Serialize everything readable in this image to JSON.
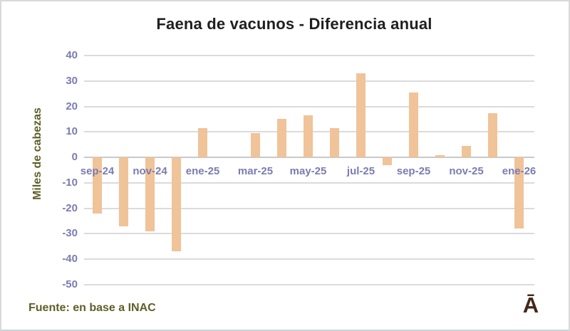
{
  "chart": {
    "title": "Faena de vacunos - Diferencia anual",
    "y_axis_title": "Miles de cabezas"
  },
  "footer": {
    "source": "Fuente: en base a INAC",
    "logo_text": "Ā"
  },
  "chart_data": {
    "type": "bar",
    "title": "Faena de vacunos - Diferencia anual",
    "xlabel": "",
    "ylabel": "Miles de cabezas",
    "categories": [
      "sep-24",
      "oct-24",
      "nov-24",
      "dic-24",
      "ene-25",
      "feb-25",
      "mar-25",
      "abr-25",
      "may-25",
      "jun-25",
      "jul-25",
      "ago-25",
      "sep-25",
      "oct-25",
      "nov-25",
      "dic-25",
      "ene-26"
    ],
    "values": [
      -22,
      -27,
      -29,
      -37,
      11.5,
      0,
      9.5,
      15,
      16.5,
      11.5,
      33,
      -3,
      25.5,
      1,
      4.5,
      17.5,
      -28
    ],
    "x_tick_labels_shown": [
      "sep-24",
      "nov-24",
      "ene-25",
      "mar-25",
      "may-25",
      "jul-25",
      "sep-25",
      "nov-25",
      "ene-26"
    ],
    "y_ticks": [
      40,
      30,
      20,
      10,
      0,
      -10,
      -20,
      -30,
      -40,
      -50
    ],
    "ylim": [
      -50,
      40
    ],
    "grid": true,
    "legend": false,
    "source_note": "Fuente: en base a INAC",
    "bar_color": "#f0c399",
    "gridline_color": "#dbdbdb",
    "zero_line_color": "#c9c9c9",
    "tick_label_color": "#7b7bb2",
    "axis_title_color": "#5f5f28",
    "source_color": "#5f5f28",
    "logo_color": "#45281a"
  }
}
